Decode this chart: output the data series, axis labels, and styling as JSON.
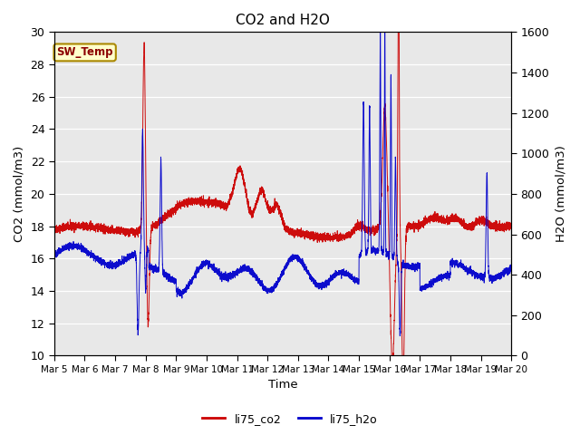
{
  "title": "CO2 and H2O",
  "xlabel": "Time",
  "ylabel_left": "CO2 (mmol/m3)",
  "ylabel_right": "H2O (mmol/m3)",
  "annotation_text": "SW_Temp",
  "left_ylim": [
    10,
    30
  ],
  "right_ylim": [
    0,
    1600
  ],
  "left_yticks": [
    10,
    12,
    14,
    16,
    18,
    20,
    22,
    24,
    26,
    28,
    30
  ],
  "right_yticks": [
    0,
    200,
    400,
    600,
    800,
    1000,
    1200,
    1400,
    1600
  ],
  "xtick_labels": [
    "Mar 5",
    "Mar 6",
    "Mar 7",
    "Mar 8",
    "Mar 9",
    "Mar 10",
    "Mar 11",
    "Mar 12",
    "Mar 13",
    "Mar 14",
    "Mar 15",
    "Mar 16",
    "Mar 17",
    "Mar 18",
    "Mar 19",
    "Mar 20"
  ],
  "co2_color": "#cc0000",
  "h2o_color": "#0000cc",
  "background_color": "#e8e8e8",
  "legend_co2": "li75_co2",
  "legend_h2o": "li75_h2o",
  "n_points": 6000,
  "random_seed": 42,
  "figsize": [
    6.4,
    4.8
  ],
  "dpi": 100
}
